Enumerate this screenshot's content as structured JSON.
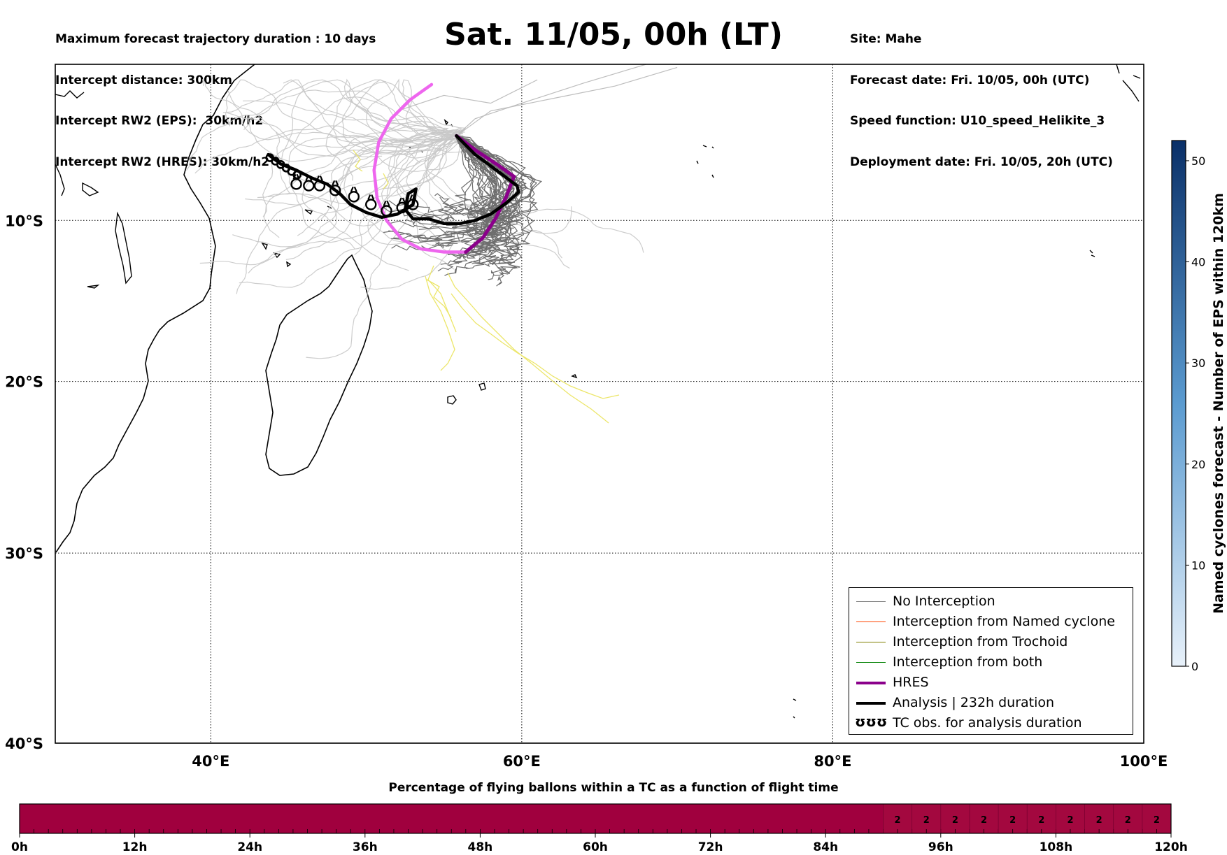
{
  "header_left": [
    "Maximum forecast trajectory duration : 10 days",
    "Intercept distance: 300km",
    "Intercept RW2 (EPS):  30km/h2",
    "Intercept RW2 (HRES): 30km/h2"
  ],
  "title": "Sat. 11/05, 00h (LT)",
  "header_right": [
    "Site: Mahe",
    "Forecast date: Fri. 10/05, 00h (UTC)",
    "Speed function: U10_speed_Helikite_3",
    "Deployment date: Fri. 10/05, 20h (UTC)"
  ],
  "map": {
    "lon_range": [
      30,
      100
    ],
    "lat_range": [
      0,
      -40
    ],
    "lon_ticks": [
      {
        "lon": 40,
        "label": "40°E"
      },
      {
        "lon": 60,
        "label": "60°E"
      },
      {
        "lon": 80,
        "label": "80°E"
      },
      {
        "lon": 100,
        "label": "100°E"
      }
    ],
    "lat_ticks": [
      {
        "lat": -10,
        "label": "10°S"
      },
      {
        "lat": -20,
        "label": "20°S"
      },
      {
        "lat": -30,
        "label": "30°S"
      },
      {
        "lat": -40,
        "label": "40°S"
      }
    ],
    "grid": "dotted"
  },
  "legend": [
    {
      "label": "No Interception",
      "color": "#808080",
      "width": 1.5
    },
    {
      "label": "Interception from Named cyclone",
      "color": "#ff4500",
      "width": 1.5
    },
    {
      "label": "Interception from Trochoid",
      "color": "#808000",
      "width": 1.5
    },
    {
      "label": "Interception from both",
      "color": "#008000",
      "width": 1.5
    },
    {
      "label": "HRES",
      "color": "#8b008b",
      "width": 4
    },
    {
      "label": "Analysis | 232h duration",
      "color": "#000000",
      "width": 4
    },
    {
      "label": "TC obs. for analysis duration",
      "symbol": "ʊʊʊ"
    }
  ],
  "colorbar": {
    "label": "Named cyclones forecast - Number of EPS within 120km",
    "ticks": [
      0,
      10,
      20,
      30,
      40,
      50
    ],
    "max": 52,
    "color_low": "#e8f1fa",
    "color_high": "#0a3068"
  },
  "time_bar": {
    "title": "Percentage of flying ballons within a TC as a function of flight time",
    "tick_labels": [
      {
        "h": 0,
        "label": "0h"
      },
      {
        "h": 12,
        "label": "12h"
      },
      {
        "h": 24,
        "label": "24h"
      },
      {
        "h": 36,
        "label": "36h"
      },
      {
        "h": 48,
        "label": "48h"
      },
      {
        "h": 60,
        "label": "60h"
      },
      {
        "h": 72,
        "label": "72h"
      },
      {
        "h": 84,
        "label": "84h"
      },
      {
        "h": 96,
        "label": "96h"
      },
      {
        "h": 108,
        "label": "108h"
      },
      {
        "h": 120,
        "label": "120h"
      }
    ],
    "color": "#a0003e",
    "cell_hours": 3,
    "cell_values": [
      {
        "h": 90,
        "v": "2"
      },
      {
        "h": 93,
        "v": "2"
      },
      {
        "h": 96,
        "v": "2"
      },
      {
        "h": 99,
        "v": "2"
      },
      {
        "h": 102,
        "v": "2"
      },
      {
        "h": 105,
        "v": "2"
      },
      {
        "h": 108,
        "v": "2"
      },
      {
        "h": 111,
        "v": "2"
      },
      {
        "h": 114,
        "v": "2"
      },
      {
        "h": 117,
        "v": "2"
      }
    ]
  },
  "tracks": {
    "analysis": [
      [
        43.7,
        -5.8
      ],
      [
        44.5,
        -6.4
      ],
      [
        45.5,
        -6.8
      ],
      [
        46.5,
        -7.3
      ],
      [
        47.5,
        -7.7
      ],
      [
        48.3,
        -8.3
      ],
      [
        49.0,
        -9.0
      ],
      [
        50.0,
        -9.5
      ],
      [
        51.0,
        -9.8
      ],
      [
        52.0,
        -9.6
      ],
      [
        53.0,
        -9.0
      ],
      [
        53.2,
        -8.0
      ],
      [
        52.7,
        -8.3
      ],
      [
        52.5,
        -9.3
      ],
      [
        53.0,
        -9.9
      ],
      [
        54.0,
        -9.9
      ],
      [
        55.0,
        -10.2
      ],
      [
        56.0,
        -10.2
      ],
      [
        57.0,
        -10.0
      ],
      [
        58.0,
        -9.6
      ],
      [
        59.0,
        -8.9
      ],
      [
        59.8,
        -8.2
      ],
      [
        59.7,
        -7.8
      ],
      [
        58.5,
        -6.9
      ],
      [
        57.0,
        -5.8
      ],
      [
        55.8,
        -4.6
      ]
    ],
    "hres": [
      [
        54.2,
        -1.3
      ],
      [
        52.8,
        -2.3
      ],
      [
        51.6,
        -3.5
      ],
      [
        50.8,
        -5.0
      ],
      [
        50.5,
        -6.8
      ],
      [
        50.7,
        -8.6
      ],
      [
        51.3,
        -10.0
      ],
      [
        52.3,
        -11.2
      ],
      [
        53.5,
        -11.8
      ],
      [
        55.0,
        -12.0
      ],
      [
        56.4,
        -12.0
      ],
      [
        57.5,
        -11.1
      ],
      [
        58.3,
        -9.9
      ],
      [
        59.0,
        -8.5
      ],
      [
        59.5,
        -7.2
      ],
      [
        58.5,
        -6.5
      ],
      [
        57.0,
        -5.5
      ],
      [
        55.8,
        -4.6
      ]
    ],
    "tc_obs": [
      [
        45.5,
        -7.6
      ],
      [
        46.3,
        -7.7
      ],
      [
        47.0,
        -7.7
      ],
      [
        48.0,
        -8.0
      ],
      [
        49.2,
        -8.4
      ],
      [
        50.3,
        -8.9
      ],
      [
        51.3,
        -9.3
      ],
      [
        52.3,
        -9.1
      ],
      [
        53.0,
        -8.9
      ]
    ]
  }
}
